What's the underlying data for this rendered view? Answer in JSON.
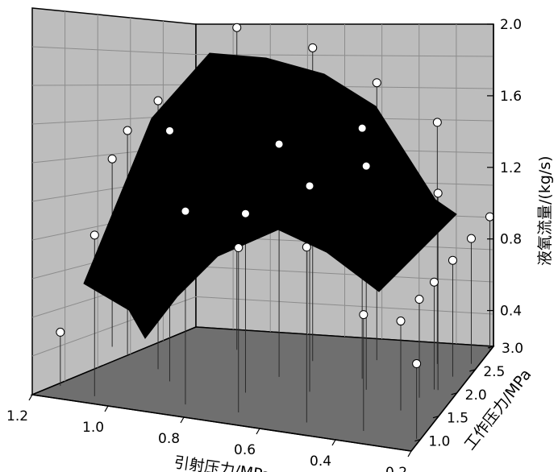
{
  "chart_data": {
    "type": "surface3d",
    "xlabel": "引射压力/MPa",
    "ylabel": "工作压力/MPa",
    "zlabel": "液氧流量/(kg/s)",
    "x_ticks": [
      "1.2",
      "1.0",
      "0.8",
      "0.6",
      "0.4",
      "0.2"
    ],
    "y_ticks": [
      "1.0",
      "1.5",
      "2.0",
      "2.5",
      "3.0"
    ],
    "z_ticks": [
      "0.4",
      "0.8",
      "1.2",
      "1.6",
      "2.0"
    ],
    "xlim": [
      0.2,
      1.2
    ],
    "ylim": [
      0.75,
      3.0
    ],
    "zlim": [
      0.2,
      2.0
    ],
    "grid": true,
    "surface_color": "#000000",
    "wall_color": "#bdbdbd",
    "floor_color": "#6f6f6f",
    "points": [
      {
        "x": 1.15,
        "y": 1.0,
        "z": 0.5
      },
      {
        "x": 1.05,
        "y": 0.9,
        "z": 1.1
      },
      {
        "x": 0.82,
        "y": 1.0,
        "z": 1.28
      },
      {
        "x": 0.68,
        "y": 1.0,
        "z": 1.12
      },
      {
        "x": 0.5,
        "y": 1.0,
        "z": 1.18
      },
      {
        "x": 0.35,
        "y": 1.0,
        "z": 0.85
      },
      {
        "x": 0.21,
        "y": 1.0,
        "z": 0.62
      },
      {
        "x": 0.9,
        "y": 1.4,
        "z": 1.6
      },
      {
        "x": 0.7,
        "y": 1.4,
        "z": 1.2
      },
      {
        "x": 0.55,
        "y": 1.6,
        "z": 1.35
      },
      {
        "x": 0.42,
        "y": 1.8,
        "z": 1.45
      },
      {
        "x": 0.8,
        "y": 2.2,
        "z": 2.0
      },
      {
        "x": 0.6,
        "y": 2.2,
        "z": 1.95
      },
      {
        "x": 0.45,
        "y": 2.4,
        "z": 1.75
      },
      {
        "x": 0.3,
        "y": 2.5,
        "z": 1.55
      },
      {
        "x": 0.95,
        "y": 1.6,
        "z": 1.7
      },
      {
        "x": 1.05,
        "y": 1.8,
        "z": 1.45
      },
      {
        "x": 1.1,
        "y": 1.9,
        "z": 1.25
      },
      {
        "x": 0.65,
        "y": 1.8,
        "z": 1.5
      },
      {
        "x": 0.45,
        "y": 2.0,
        "z": 1.6
      },
      {
        "x": 0.25,
        "y": 2.0,
        "z": 1.3
      },
      {
        "x": 0.2,
        "y": 2.9,
        "z": 0.95
      },
      {
        "x": 0.22,
        "y": 2.6,
        "z": 0.9
      },
      {
        "x": 0.24,
        "y": 2.3,
        "z": 0.85
      },
      {
        "x": 0.26,
        "y": 2.0,
        "z": 0.8
      },
      {
        "x": 0.28,
        "y": 1.8,
        "z": 0.75
      },
      {
        "x": 0.3,
        "y": 1.5,
        "z": 0.7
      }
    ]
  }
}
